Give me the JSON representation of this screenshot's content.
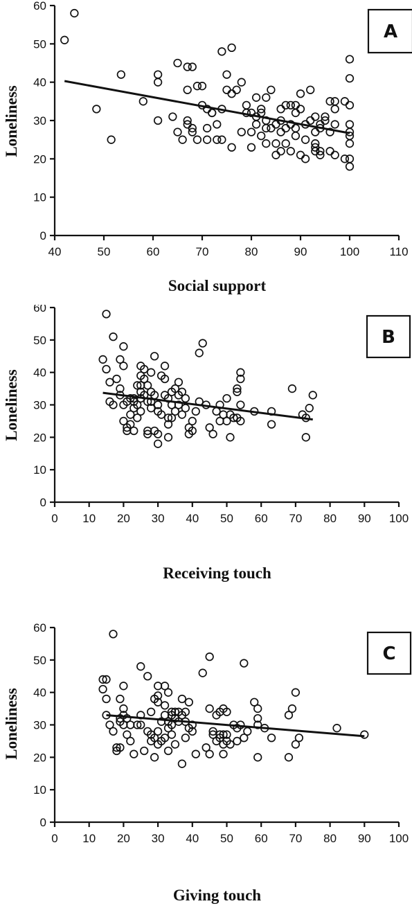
{
  "chart_data": [
    {
      "type": "scatter",
      "panel_label": "A",
      "xlabel": "Social support",
      "ylabel": "Loneliness",
      "xlim": [
        40,
        110
      ],
      "ylim": [
        0,
        60
      ],
      "xticks": [
        40,
        50,
        60,
        70,
        80,
        90,
        100,
        110
      ],
      "yticks": [
        0,
        10,
        20,
        30,
        40,
        50,
        60
      ],
      "trendline": {
        "x": [
          42,
          100
        ],
        "y": [
          40.3,
          26.7
        ]
      },
      "points": [
        [
          42,
          51
        ],
        [
          44,
          58
        ],
        [
          48.5,
          33
        ],
        [
          51.5,
          25
        ],
        [
          53.5,
          42
        ],
        [
          58,
          35
        ],
        [
          61,
          42
        ],
        [
          61,
          40
        ],
        [
          61,
          30
        ],
        [
          64,
          31
        ],
        [
          65,
          45
        ],
        [
          65,
          27
        ],
        [
          66,
          25
        ],
        [
          67,
          38
        ],
        [
          67,
          30
        ],
        [
          67,
          29
        ],
        [
          67,
          44
        ],
        [
          68,
          44
        ],
        [
          68,
          28
        ],
        [
          68,
          27
        ],
        [
          69,
          39
        ],
        [
          69,
          25
        ],
        [
          70,
          39
        ],
        [
          70,
          34
        ],
        [
          71,
          33
        ],
        [
          71,
          28
        ],
        [
          71,
          25
        ],
        [
          72,
          32
        ],
        [
          72,
          32
        ],
        [
          73,
          29
        ],
        [
          73,
          25
        ],
        [
          74,
          48
        ],
        [
          74,
          33
        ],
        [
          74,
          25
        ],
        [
          75,
          42
        ],
        [
          75,
          38
        ],
        [
          76,
          49
        ],
        [
          76,
          23
        ],
        [
          76,
          37
        ],
        [
          77,
          38
        ],
        [
          78,
          40
        ],
        [
          78,
          27
        ],
        [
          79,
          34
        ],
        [
          79,
          32
        ],
        [
          80,
          32
        ],
        [
          80,
          23
        ],
        [
          80,
          27
        ],
        [
          81,
          36
        ],
        [
          81,
          31
        ],
        [
          81,
          29
        ],
        [
          82,
          33
        ],
        [
          82,
          32
        ],
        [
          82,
          26
        ],
        [
          83,
          36
        ],
        [
          83,
          30
        ],
        [
          83,
          28
        ],
        [
          83,
          24
        ],
        [
          84,
          38
        ],
        [
          84,
          28
        ],
        [
          85,
          29
        ],
        [
          85,
          24
        ],
        [
          85,
          21
        ],
        [
          86,
          33
        ],
        [
          86,
          30
        ],
        [
          86,
          27
        ],
        [
          86,
          22
        ],
        [
          87,
          34
        ],
        [
          87,
          28
        ],
        [
          87,
          24
        ],
        [
          88,
          34
        ],
        [
          88,
          29
        ],
        [
          88,
          22
        ],
        [
          89,
          34
        ],
        [
          89,
          32
        ],
        [
          89,
          28
        ],
        [
          89,
          26
        ],
        [
          90,
          37
        ],
        [
          90,
          33
        ],
        [
          90,
          21
        ],
        [
          91,
          29
        ],
        [
          91,
          25
        ],
        [
          91,
          20
        ],
        [
          92,
          38
        ],
        [
          92,
          30
        ],
        [
          93,
          31
        ],
        [
          93,
          27
        ],
        [
          93,
          24
        ],
        [
          93,
          23
        ],
        [
          93,
          22
        ],
        [
          94,
          29
        ],
        [
          94,
          28
        ],
        [
          94,
          22
        ],
        [
          94,
          21
        ],
        [
          95,
          31
        ],
        [
          95,
          30
        ],
        [
          96,
          35
        ],
        [
          96,
          27
        ],
        [
          96,
          22
        ],
        [
          97,
          35
        ],
        [
          97,
          33
        ],
        [
          97,
          29
        ],
        [
          97,
          21
        ],
        [
          99,
          35
        ],
        [
          99,
          20
        ],
        [
          100,
          46
        ],
        [
          100,
          41
        ],
        [
          100,
          34
        ],
        [
          100,
          29
        ],
        [
          100,
          27
        ],
        [
          100,
          26
        ],
        [
          100,
          24
        ],
        [
          100,
          20
        ],
        [
          100,
          18
        ]
      ]
    },
    {
      "type": "scatter",
      "panel_label": "B",
      "xlabel": "Receiving touch",
      "ylabel": "Loneliness",
      "xlim": [
        0,
        100
      ],
      "ylim": [
        0,
        60
      ],
      "xticks": [
        0,
        10,
        20,
        30,
        40,
        50,
        60,
        70,
        80,
        90,
        100
      ],
      "yticks": [
        0,
        10,
        20,
        30,
        40,
        50,
        60
      ],
      "trendline": {
        "x": [
          14,
          75
        ],
        "y": [
          33.7,
          25.5
        ]
      },
      "points": [
        [
          14,
          44
        ],
        [
          15,
          58
        ],
        [
          15,
          41
        ],
        [
          16,
          37
        ],
        [
          16,
          31
        ],
        [
          17,
          51
        ],
        [
          17,
          30
        ],
        [
          18,
          38
        ],
        [
          19,
          44
        ],
        [
          19,
          35
        ],
        [
          19,
          33
        ],
        [
          20,
          48
        ],
        [
          20,
          42
        ],
        [
          20,
          30
        ],
        [
          20,
          25
        ],
        [
          21,
          31
        ],
        [
          21,
          23
        ],
        [
          21,
          22
        ],
        [
          22,
          32
        ],
        [
          22,
          27
        ],
        [
          22,
          24
        ],
        [
          23,
          32
        ],
        [
          23,
          31
        ],
        [
          23,
          29
        ],
        [
          23,
          22
        ],
        [
          24,
          36
        ],
        [
          24,
          30
        ],
        [
          24,
          26
        ],
        [
          25,
          42
        ],
        [
          25,
          39
        ],
        [
          25,
          36
        ],
        [
          25,
          34
        ],
        [
          25,
          32
        ],
        [
          25,
          28
        ],
        [
          26,
          41
        ],
        [
          26,
          38
        ],
        [
          26,
          33
        ],
        [
          27,
          36
        ],
        [
          27,
          31
        ],
        [
          27,
          22
        ],
        [
          27,
          21
        ],
        [
          28,
          40
        ],
        [
          28,
          34
        ],
        [
          28,
          31
        ],
        [
          28,
          29
        ],
        [
          29,
          45
        ],
        [
          29,
          33
        ],
        [
          29,
          22
        ],
        [
          30,
          30
        ],
        [
          30,
          28
        ],
        [
          30,
          21
        ],
        [
          30,
          18
        ],
        [
          31,
          39
        ],
        [
          31,
          27
        ],
        [
          32,
          42
        ],
        [
          32,
          38
        ],
        [
          32,
          33
        ],
        [
          33,
          32
        ],
        [
          33,
          26
        ],
        [
          33,
          24
        ],
        [
          33,
          20
        ],
        [
          34,
          34
        ],
        [
          34,
          30
        ],
        [
          34,
          26
        ],
        [
          35,
          35
        ],
        [
          35,
          28
        ],
        [
          36,
          37
        ],
        [
          36,
          33
        ],
        [
          36,
          30
        ],
        [
          37,
          34
        ],
        [
          37,
          27
        ],
        [
          38,
          32
        ],
        [
          38,
          29
        ],
        [
          39,
          23
        ],
        [
          39,
          21
        ],
        [
          40,
          25
        ],
        [
          40,
          22
        ],
        [
          41,
          28
        ],
        [
          42,
          46
        ],
        [
          42,
          31
        ],
        [
          43,
          49
        ],
        [
          44,
          30
        ],
        [
          45,
          23
        ],
        [
          46,
          21
        ],
        [
          47,
          28
        ],
        [
          48,
          25
        ],
        [
          48,
          30
        ],
        [
          49,
          27
        ],
        [
          50,
          32
        ],
        [
          50,
          25
        ],
        [
          51,
          27
        ],
        [
          51,
          20
        ],
        [
          52,
          26
        ],
        [
          53,
          35
        ],
        [
          53,
          34
        ],
        [
          53,
          26
        ],
        [
          54,
          40
        ],
        [
          54,
          38
        ],
        [
          54,
          30
        ],
        [
          54,
          25
        ],
        [
          58,
          28
        ],
        [
          63,
          28
        ],
        [
          63,
          24
        ],
        [
          69,
          35
        ],
        [
          72,
          27
        ],
        [
          73,
          26
        ],
        [
          73,
          20
        ],
        [
          74,
          29
        ],
        [
          75,
          33
        ]
      ]
    },
    {
      "type": "scatter",
      "panel_label": "C",
      "xlabel": "Giving touch",
      "ylabel": "Loneliness",
      "xlim": [
        0,
        100
      ],
      "ylim": [
        0,
        60
      ],
      "xticks": [
        0,
        10,
        20,
        30,
        40,
        50,
        60,
        70,
        80,
        90,
        100
      ],
      "yticks": [
        0,
        10,
        20,
        30,
        40,
        50,
        60
      ],
      "trendline": {
        "x": [
          15,
          90
        ],
        "y": [
          33.0,
          26.5
        ]
      },
      "points": [
        [
          14,
          44
        ],
        [
          14,
          41
        ],
        [
          15,
          44
        ],
        [
          15,
          38
        ],
        [
          15,
          33
        ],
        [
          16,
          30
        ],
        [
          17,
          58
        ],
        [
          17,
          28
        ],
        [
          18,
          23
        ],
        [
          18,
          22
        ],
        [
          19,
          38
        ],
        [
          19,
          32
        ],
        [
          19,
          31
        ],
        [
          19,
          23
        ],
        [
          20,
          42
        ],
        [
          20,
          35
        ],
        [
          20,
          33
        ],
        [
          20,
          30
        ],
        [
          21,
          32
        ],
        [
          21,
          27
        ],
        [
          22,
          30
        ],
        [
          22,
          25
        ],
        [
          23,
          21
        ],
        [
          24,
          30
        ],
        [
          25,
          48
        ],
        [
          25,
          33
        ],
        [
          25,
          30
        ],
        [
          26,
          22
        ],
        [
          27,
          45
        ],
        [
          27,
          28
        ],
        [
          28,
          34
        ],
        [
          28,
          27
        ],
        [
          28,
          25
        ],
        [
          29,
          38
        ],
        [
          29,
          26
        ],
        [
          29,
          20
        ],
        [
          30,
          42
        ],
        [
          30,
          39
        ],
        [
          30,
          37
        ],
        [
          30,
          28
        ],
        [
          30,
          24
        ],
        [
          31,
          31
        ],
        [
          31,
          25
        ],
        [
          32,
          42
        ],
        [
          32,
          36
        ],
        [
          32,
          33
        ],
        [
          32,
          26
        ],
        [
          33,
          40
        ],
        [
          33,
          31
        ],
        [
          33,
          29
        ],
        [
          33,
          22
        ],
        [
          34,
          34
        ],
        [
          34,
          33
        ],
        [
          34,
          30
        ],
        [
          34,
          27
        ],
        [
          35,
          34
        ],
        [
          35,
          32
        ],
        [
          35,
          24
        ],
        [
          36,
          34
        ],
        [
          36,
          31
        ],
        [
          37,
          38
        ],
        [
          37,
          33
        ],
        [
          37,
          18
        ],
        [
          38,
          34
        ],
        [
          38,
          26
        ],
        [
          38,
          31
        ],
        [
          39,
          37
        ],
        [
          39,
          29
        ],
        [
          40,
          30
        ],
        [
          40,
          28
        ],
        [
          41,
          21
        ],
        [
          43,
          46
        ],
        [
          44,
          23
        ],
        [
          45,
          51
        ],
        [
          45,
          35
        ],
        [
          45,
          21
        ],
        [
          46,
          28
        ],
        [
          46,
          27
        ],
        [
          47,
          33
        ],
        [
          47,
          25
        ],
        [
          48,
          34
        ],
        [
          48,
          27
        ],
        [
          48,
          26
        ],
        [
          49,
          35
        ],
        [
          49,
          27
        ],
        [
          49,
          24
        ],
        [
          49,
          21
        ],
        [
          50,
          34
        ],
        [
          50,
          27
        ],
        [
          50,
          25
        ],
        [
          51,
          24
        ],
        [
          52,
          30
        ],
        [
          53,
          29
        ],
        [
          53,
          25
        ],
        [
          54,
          30
        ],
        [
          55,
          49
        ],
        [
          55,
          26
        ],
        [
          56,
          28
        ],
        [
          58,
          37
        ],
        [
          59,
          35
        ],
        [
          59,
          32
        ],
        [
          59,
          30
        ],
        [
          59,
          20
        ],
        [
          61,
          29
        ],
        [
          63,
          26
        ],
        [
          68,
          33
        ],
        [
          68,
          20
        ],
        [
          69,
          35
        ],
        [
          70,
          40
        ],
        [
          70,
          24
        ],
        [
          71,
          26
        ],
        [
          82,
          29
        ],
        [
          90,
          27
        ]
      ]
    }
  ]
}
